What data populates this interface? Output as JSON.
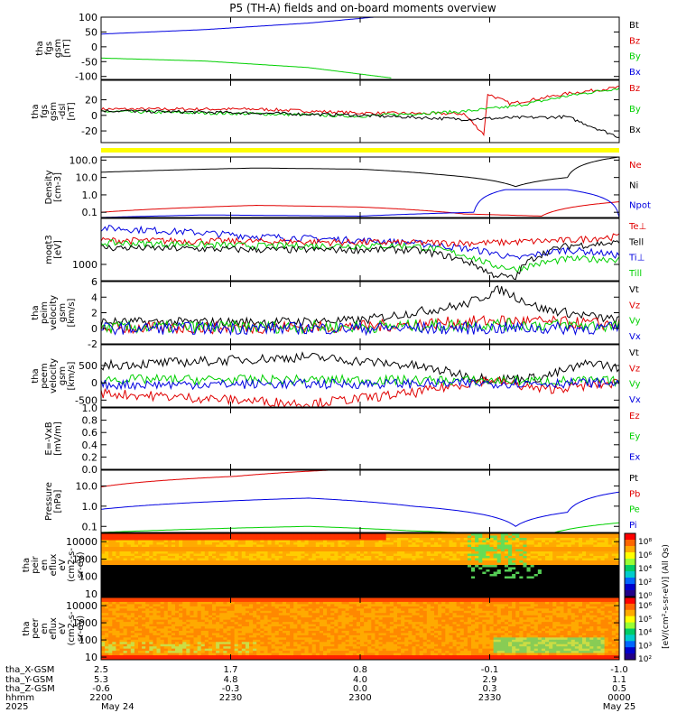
{
  "title": "P5 (TH-A) fields and on-board moments overview",
  "colors": {
    "black": "#000000",
    "red": "#e00000",
    "green": "#00d000",
    "blue": "#0000e0",
    "yellow": "#ffff00"
  },
  "chart_data": [
    {
      "type": "line",
      "ylabel": [
        "tha",
        "fgs",
        "gsm",
        "[nT]"
      ],
      "ylim": [
        -110,
        100
      ],
      "yticks": [
        100,
        50,
        0,
        -50,
        -100
      ],
      "legend": [
        "Bt",
        "Bz",
        "By",
        "Bx"
      ],
      "legend_colors": [
        "black",
        "red",
        "green",
        "blue"
      ],
      "series": [
        {
          "name": "Bx",
          "color": "blue",
          "x": [
            0,
            0.2,
            0.4,
            0.527
          ],
          "y": [
            43,
            58,
            80,
            100
          ]
        },
        {
          "name": "By",
          "color": "green",
          "x": [
            0,
            0.2,
            0.4,
            0.56
          ],
          "y": [
            -38,
            -48,
            -70,
            -105
          ]
        }
      ]
    },
    {
      "type": "line",
      "ylabel": [
        "tha",
        "fgs",
        "gsm",
        "-dsl",
        "[nT]"
      ],
      "ylim": [
        -35,
        45
      ],
      "yticks": [
        20,
        0,
        -20
      ],
      "legend": [
        "Bz",
        "By",
        "Bx"
      ],
      "legend_colors": [
        "red",
        "green",
        "black"
      ],
      "series": [
        {
          "name": "Bz",
          "color": "red",
          "x": [
            0,
            0.3,
            0.5,
            0.7,
            0.74,
            0.745,
            0.79,
            0.9,
            1
          ],
          "y": [
            8,
            8,
            3,
            2,
            -25,
            28,
            15,
            28,
            36
          ]
        },
        {
          "name": "By",
          "color": "green",
          "x": [
            0,
            0.3,
            0.5,
            0.7,
            0.8,
            0.9,
            1
          ],
          "y": [
            5,
            2,
            -1,
            5,
            12,
            25,
            35
          ]
        },
        {
          "name": "Bx",
          "color": "black",
          "x": [
            0,
            0.3,
            0.5,
            0.7,
            0.8,
            0.9,
            1
          ],
          "y": [
            6,
            3,
            0,
            -5,
            -3,
            -2,
            -28
          ]
        }
      ]
    },
    {
      "type": "line",
      "ylabel": [
        "Density",
        "[cm-3]"
      ],
      "yscale": "log",
      "ylim": [
        0.05,
        150
      ],
      "yticks": [
        "100.0",
        "10.0",
        "1.0",
        "0.1"
      ],
      "legend": [
        "Ne",
        "Ni",
        "Npot"
      ],
      "legend_colors": [
        "red",
        "black",
        "blue"
      ],
      "series": [
        {
          "name": "Ni",
          "color": "black",
          "x": [
            0,
            0.3,
            0.5,
            0.65,
            0.8,
            0.9,
            1
          ],
          "y": [
            20,
            35,
            30,
            15,
            3,
            10,
            150
          ]
        },
        {
          "name": "Ne",
          "color": "red",
          "x": [
            0,
            0.3,
            0.5,
            0.7,
            0.85,
            1
          ],
          "y": [
            0.1,
            0.25,
            0.2,
            0.08,
            0.06,
            0.4
          ]
        },
        {
          "name": "Npot",
          "color": "blue",
          "x": [
            0,
            0.2,
            0.5,
            0.72,
            0.78,
            0.9,
            1
          ],
          "y": [
            0.05,
            0.07,
            0.06,
            0.1,
            2,
            2,
            0.05
          ]
        }
      ]
    },
    {
      "type": "line",
      "ylabel": [
        "moqt3",
        "[eV]"
      ],
      "yscale": "log",
      "ylim": [
        300,
        30000
      ],
      "yticks": [
        "1000"
      ],
      "legend": [
        "Te⊥",
        "Tell",
        "Ti⊥",
        "Till"
      ],
      "legend_colors": [
        "red",
        "black",
        "blue",
        "green"
      ],
      "series": [
        {
          "name": "Ti⊥",
          "color": "blue",
          "x": [
            0,
            0.3,
            0.6,
            0.75,
            0.8,
            0.9,
            1
          ],
          "y": [
            15000,
            8000,
            5000,
            2500,
            1500,
            3000,
            2000
          ]
        },
        {
          "name": "Te⊥",
          "color": "red",
          "x": [
            0,
            0.3,
            0.6,
            0.75,
            0.9,
            1
          ],
          "y": [
            6000,
            5500,
            5000,
            5000,
            6000,
            8000
          ]
        },
        {
          "name": "Till",
          "color": "green",
          "x": [
            0,
            0.3,
            0.6,
            0.75,
            0.8,
            0.9,
            1
          ],
          "y": [
            5000,
            4000,
            4000,
            1000,
            700,
            1500,
            1500
          ]
        },
        {
          "name": "Tell",
          "color": "black",
          "x": [
            0,
            0.3,
            0.6,
            0.75,
            0.8,
            0.9,
            1
          ],
          "y": [
            3500,
            3000,
            3000,
            500,
            350,
            4000,
            5000
          ]
        }
      ]
    },
    {
      "type": "line",
      "ylabel": [
        "tha",
        "peim",
        "velocity",
        "gsm",
        "[km/s]"
      ],
      "ylim": [
        -2,
        6
      ],
      "yticks": [
        6,
        4,
        2,
        0,
        -2
      ],
      "legend": [
        "Vt",
        "Vz",
        "Vy",
        "Vx"
      ],
      "legend_colors": [
        "black",
        "red",
        "green",
        "blue"
      ],
      "series": [
        {
          "name": "Vt",
          "color": "black",
          "x": [
            0,
            0.3,
            0.5,
            0.7,
            0.77,
            0.85,
            0.95,
            1
          ],
          "y": [
            0.8,
            0.8,
            1,
            3,
            5,
            2.5,
            1.5,
            1
          ]
        },
        {
          "name": "Vz",
          "color": "red",
          "x": [
            0,
            0.5,
            0.77,
            1
          ],
          "y": [
            0,
            0.2,
            1,
            0.5
          ]
        },
        {
          "name": "Vy",
          "color": "green",
          "x": [
            0,
            0.5,
            0.77,
            1
          ],
          "y": [
            0.1,
            0.2,
            0.5,
            0.3
          ]
        },
        {
          "name": "Vx",
          "color": "blue",
          "x": [
            0,
            0.5,
            0.77,
            1
          ],
          "y": [
            0,
            0,
            0,
            0
          ]
        }
      ]
    },
    {
      "type": "line",
      "ylabel": [
        "tha",
        "peem",
        "velocity",
        "gsm",
        "[km/s]"
      ],
      "ylim": [
        -700,
        1100
      ],
      "yticks": [
        500,
        0,
        -500
      ],
      "legend": [
        "Vt",
        "Vz",
        "Vy",
        "Vx"
      ],
      "legend_colors": [
        "black",
        "red",
        "green",
        "blue"
      ],
      "series": [
        {
          "name": "Vt",
          "color": "black",
          "x": [
            0,
            0.4,
            0.6,
            0.75,
            0.85,
            0.95,
            1
          ],
          "y": [
            500,
            750,
            500,
            100,
            150,
            600,
            400
          ]
        },
        {
          "name": "Vz",
          "color": "red",
          "x": [
            0,
            0.4,
            0.6,
            0.75,
            0.85,
            1
          ],
          "y": [
            -300,
            -600,
            -300,
            100,
            -200,
            0
          ]
        },
        {
          "name": "Vy",
          "color": "green",
          "x": [
            0,
            0.5,
            1
          ],
          "y": [
            100,
            80,
            50
          ]
        },
        {
          "name": "Vx",
          "color": "blue",
          "x": [
            0,
            0.5,
            1
          ],
          "y": [
            -50,
            -30,
            0
          ]
        }
      ]
    },
    {
      "type": "line",
      "ylabel": [
        "E=-VxB",
        "[mV/m]"
      ],
      "ylim": [
        0,
        1
      ],
      "yticks": [
        "1.0",
        "0.8",
        "0.6",
        "0.4",
        "0.2",
        "0.0"
      ],
      "legend": [
        "Ez",
        "Ey",
        "Ex"
      ],
      "legend_colors": [
        "red",
        "green",
        "blue"
      ],
      "series": []
    },
    {
      "type": "line",
      "ylabel": [
        "Pressure",
        "[nPa]"
      ],
      "yscale": "log",
      "ylim": [
        0.05,
        60
      ],
      "yticks": [
        "10.0",
        "1.0",
        "0.1"
      ],
      "legend": [
        "Pt",
        "Pb",
        "Pe",
        "Pi"
      ],
      "legend_colors": [
        "black",
        "red",
        "green",
        "blue"
      ],
      "series": [
        {
          "name": "Pb",
          "color": "red",
          "x": [
            0,
            0.26,
            0.44
          ],
          "y": [
            9,
            30,
            60
          ]
        },
        {
          "name": "Pi",
          "color": "blue",
          "x": [
            0,
            0.4,
            0.6,
            0.8,
            0.9,
            1
          ],
          "y": [
            0.7,
            2.5,
            1,
            0.1,
            0.5,
            5
          ]
        },
        {
          "name": "Pe",
          "color": "green",
          "x": [
            0,
            0.4,
            0.6,
            0.85,
            1
          ],
          "y": [
            0.05,
            0.1,
            0.06,
            0.03,
            0.15
          ]
        }
      ]
    },
    {
      "type": "heatmap",
      "ylabel": [
        "tha",
        "peir",
        "en",
        "eflux",
        "eV",
        "(cm2-s-",
        "sr-eV)"
      ],
      "yscale": "log",
      "ylim": [
        7,
        30000
      ],
      "yticks": [
        "10000",
        "1000",
        "100",
        "10"
      ]
    },
    {
      "type": "heatmap",
      "ylabel": [
        "tha",
        "peer",
        "en",
        "eflux",
        "eV",
        "(cm2-s-",
        "sr-eV)"
      ],
      "yscale": "log",
      "ylim": [
        7,
        30000
      ],
      "yticks": [
        "10000",
        "1000",
        "100",
        "10"
      ]
    }
  ],
  "colorbar": {
    "label": "[eV/(cm²-s-sr-eV)] (All Qs)",
    "ticks": [
      "10⁸",
      "10⁶",
      "10⁴",
      "10²",
      "10⁰"
    ],
    "ticks2": [
      "10⁶",
      "10⁵",
      "10⁴",
      "10³",
      "10²"
    ]
  },
  "axis_info": {
    "rows": [
      {
        "label": "tha_X-GSM",
        "values": [
          "2.5",
          "1.7",
          "0.8",
          "-0.1",
          "-1.0"
        ]
      },
      {
        "label": "tha_Y-GSM",
        "values": [
          "5.3",
          "4.8",
          "4.0",
          "2.9",
          "1.1"
        ]
      },
      {
        "label": "tha_Z-GSM",
        "values": [
          "-0.6",
          "-0.3",
          "0.0",
          "0.3",
          "0.5"
        ]
      },
      {
        "label": "hhmm",
        "values": [
          "2200",
          "2230",
          "2300",
          "2330",
          "0000"
        ]
      }
    ],
    "year": "2025",
    "start_date": "May 24",
    "end_date": "May 25"
  }
}
